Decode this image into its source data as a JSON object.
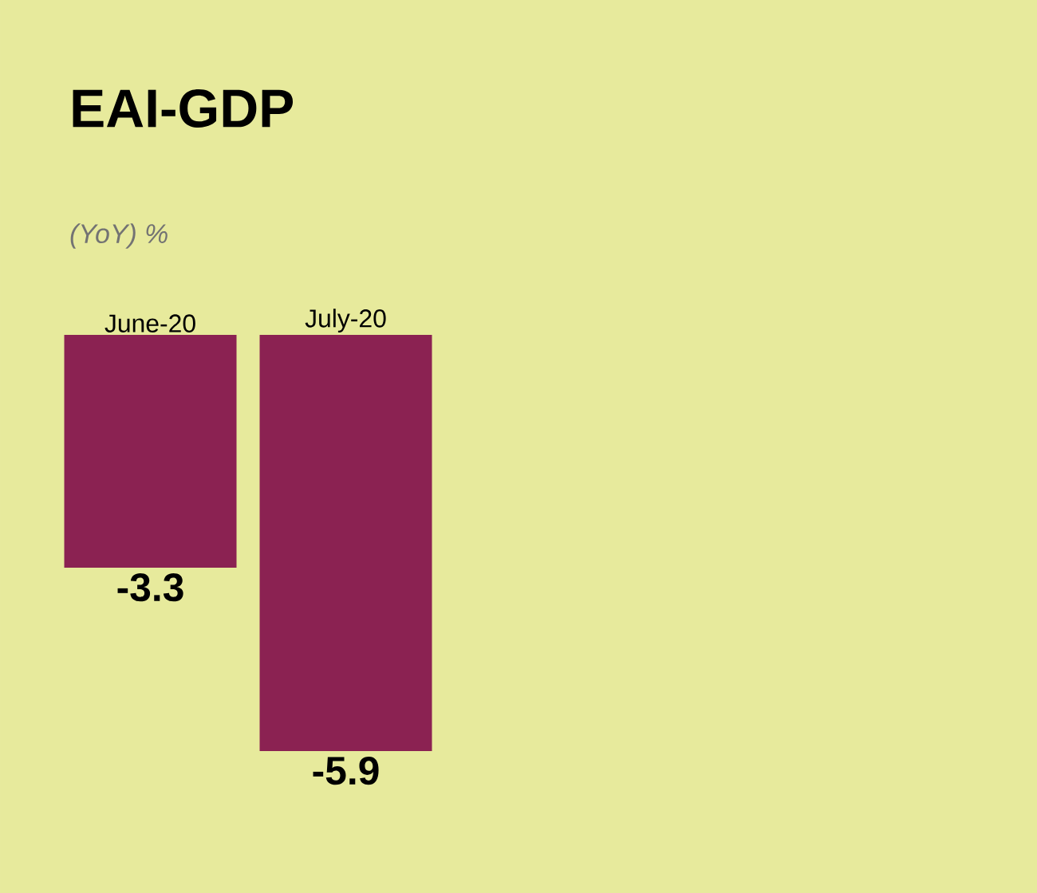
{
  "chart_data": {
    "type": "bar",
    "title": "EAI-GDP",
    "subtitle": "(YoY) %",
    "categories": [
      "June-20",
      "July-20"
    ],
    "values": [
      -3.3,
      -5.9
    ],
    "color": "#8b2252",
    "ylim": [
      -5.9,
      0
    ],
    "tick_labels": "x",
    "data_labels": true
  }
}
